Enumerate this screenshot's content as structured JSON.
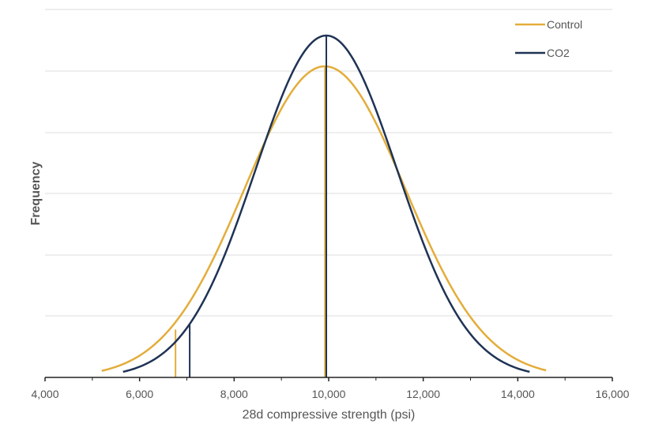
{
  "chart_data": {
    "type": "line",
    "title": "",
    "xlabel": "28d compressive strength (psi)",
    "ylabel": "Frequency",
    "xlim": [
      4000,
      16000
    ],
    "ylim": [
      0,
      1
    ],
    "x_ticks": [
      4000,
      6000,
      8000,
      10000,
      12000,
      14000,
      16000
    ],
    "x_tick_labels": [
      "4,000",
      "6,000",
      "8,000",
      "10,000",
      "12,000",
      "14,000",
      "16,000"
    ],
    "y_gridlines": [
      0,
      0.2,
      0.4,
      0.6,
      0.8,
      1.0
    ],
    "grid": true,
    "legend_position": "top-right",
    "series": [
      {
        "name": "Control",
        "color": "#e3ad3a",
        "mean": 9920,
        "std": 1700,
        "peak": 0.91,
        "x_range": [
          5200,
          14600
        ],
        "lower_limit": 6760,
        "lower_limit_height": 0.14
      },
      {
        "name": "CO2",
        "color": "#1f3355",
        "mean": 9950,
        "std": 1500,
        "peak": 1.0,
        "x_range": [
          5650,
          14250
        ],
        "lower_limit": 7060,
        "lower_limit_height": 0.155
      }
    ]
  }
}
